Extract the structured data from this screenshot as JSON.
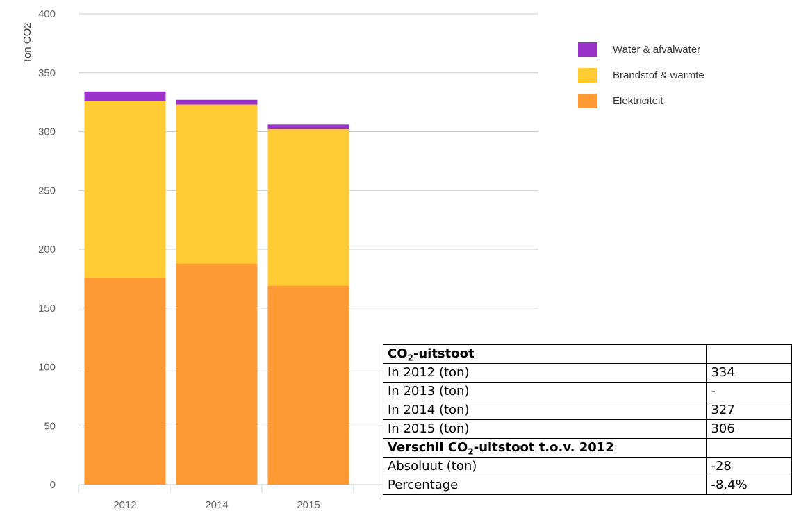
{
  "chart_data": {
    "type": "bar",
    "stacked": true,
    "categories": [
      "2012",
      "2014",
      "2015"
    ],
    "series": [
      {
        "name": "Elektriciteit",
        "color": "#FF9933",
        "values": [
          176,
          188,
          169
        ]
      },
      {
        "name": "Brandstof & warmte",
        "color": "#FFCC33",
        "values": [
          150,
          135,
          133
        ]
      },
      {
        "name": "Water & afvalwater",
        "color": "#9933CC",
        "values": [
          8,
          4,
          4
        ]
      }
    ],
    "ylabel": "Ton CO2",
    "ylim": [
      0,
      400
    ],
    "yticks": [
      "0",
      "50",
      "100",
      "150",
      "200",
      "250",
      "300",
      "350",
      "400"
    ],
    "grid": true,
    "legend_position": "top-right"
  },
  "table": {
    "header1_pre": "CO",
    "header1_sub": "2",
    "header1_post": "-uitstoot",
    "rows1": [
      {
        "label": "In 2012 (ton)",
        "value": "334"
      },
      {
        "label": "In 2013 (ton)",
        "value": "-"
      },
      {
        "label": "In 2014 (ton)",
        "value": "327"
      },
      {
        "label": "In 2015 (ton)",
        "value": "306"
      }
    ],
    "header2_pre": "Verschil CO",
    "header2_sub": "2",
    "header2_post": "-uitstoot t.o.v. 2012",
    "rows2": [
      {
        "label": "Absoluut (ton)",
        "value": "-28"
      },
      {
        "label": "Percentage",
        "value": "-8,4%"
      }
    ]
  }
}
